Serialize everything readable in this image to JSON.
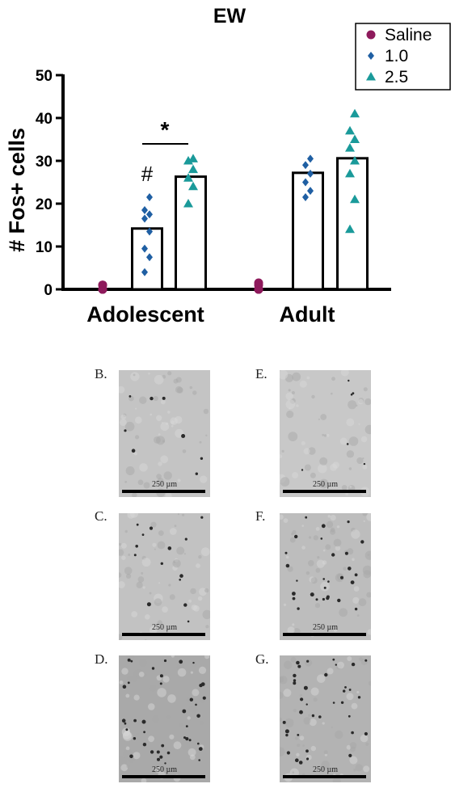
{
  "chart_data": {
    "type": "bar",
    "title": "EW",
    "ylabel": "# Fos+ cells",
    "xlabel": "",
    "ylim": [
      0,
      50
    ],
    "yticks": [
      0,
      10,
      20,
      30,
      40,
      50
    ],
    "groups": [
      "Adolescent",
      "Adult"
    ],
    "series": [
      {
        "name": "Saline",
        "color": "#8e1a5c",
        "marker": "circle",
        "bar_values": [
          0,
          0
        ],
        "points": [
          [
            0,
            0,
            0,
            1,
            1
          ],
          [
            0,
            0,
            0,
            1,
            1.5
          ]
        ]
      },
      {
        "name": "1.0",
        "color": "#1f5fa3",
        "marker": "diamond",
        "bar_values": [
          14.2,
          27.2
        ],
        "points": [
          [
            4,
            7.5,
            9.5,
            13.5,
            16.5,
            17.5,
            18.5,
            21.5
          ],
          [
            21.5,
            23,
            25,
            27,
            29,
            30.5
          ]
        ]
      },
      {
        "name": "2.5",
        "color": "#1a9a9a",
        "marker": "triangle",
        "bar_values": [
          26.3,
          30.6
        ],
        "points": [
          [
            20,
            24,
            26,
            28,
            30,
            30.5
          ],
          [
            14,
            21,
            27,
            30,
            33,
            35,
            37,
            41
          ]
        ]
      }
    ],
    "annotations": {
      "star": "*",
      "hash": "#"
    },
    "legend_position": "top-right",
    "grid": false
  },
  "panels": [
    {
      "label": "B.",
      "scale": "250 µm"
    },
    {
      "label": "C.",
      "scale": "250 µm"
    },
    {
      "label": "D.",
      "scale": "250 µm"
    },
    {
      "label": "E.",
      "scale": "250 µm"
    },
    {
      "label": "F.",
      "scale": "250 µm"
    },
    {
      "label": "G.",
      "scale": "250 µm"
    }
  ]
}
